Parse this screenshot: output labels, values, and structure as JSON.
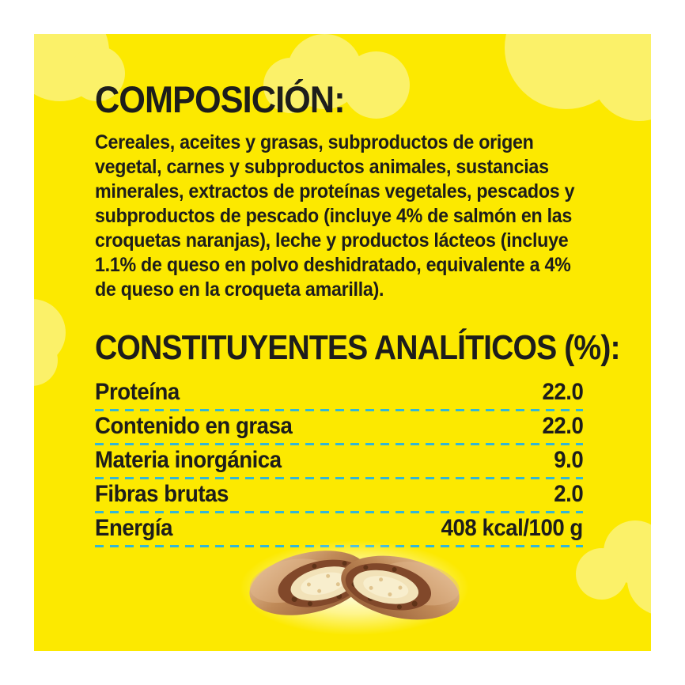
{
  "panel": {
    "background_color": "#fce900",
    "cloud_color": "#fbf169",
    "text_color": "#1d1d1b",
    "divider_color": "#33b7d6",
    "border_color": "#ffffff"
  },
  "composition": {
    "title": "COMPOSICIÓN:",
    "body_lines": [
      "Cereales, aceites y grasas, subproductos de origen",
      "vegetal, carnes y subproductos animales, sustancias",
      "minerales, extractos de proteínas vegetales, pescados y",
      "subproductos de pescado (incluye 4% de salmón en las",
      "croquetas naranjas), leche y productos lácteos (incluye",
      "1.1% de queso en polvo deshidratado, equivalente a 4%",
      "de queso en la croqueta amarilla)."
    ]
  },
  "analytical_constituents": {
    "title": "CONSTITUYENTES ANALÍTICOS (%):",
    "rows": [
      {
        "label": "Proteína",
        "value": "22.0"
      },
      {
        "label": "Contenido en grasa",
        "value": "22.0"
      },
      {
        "label": "Materia inorgánica",
        "value": "9.0"
      },
      {
        "label": "Fibras brutas",
        "value": "2.0"
      },
      {
        "label": "Energía",
        "value": "408 kcal/100 g"
      }
    ]
  },
  "illustration": {
    "name": "split-croquette-treat",
    "shell_color": "#c08a58",
    "crust_color": "#81482a",
    "filling_color": "#f2e2b8",
    "glow_color": "#ffffff"
  }
}
